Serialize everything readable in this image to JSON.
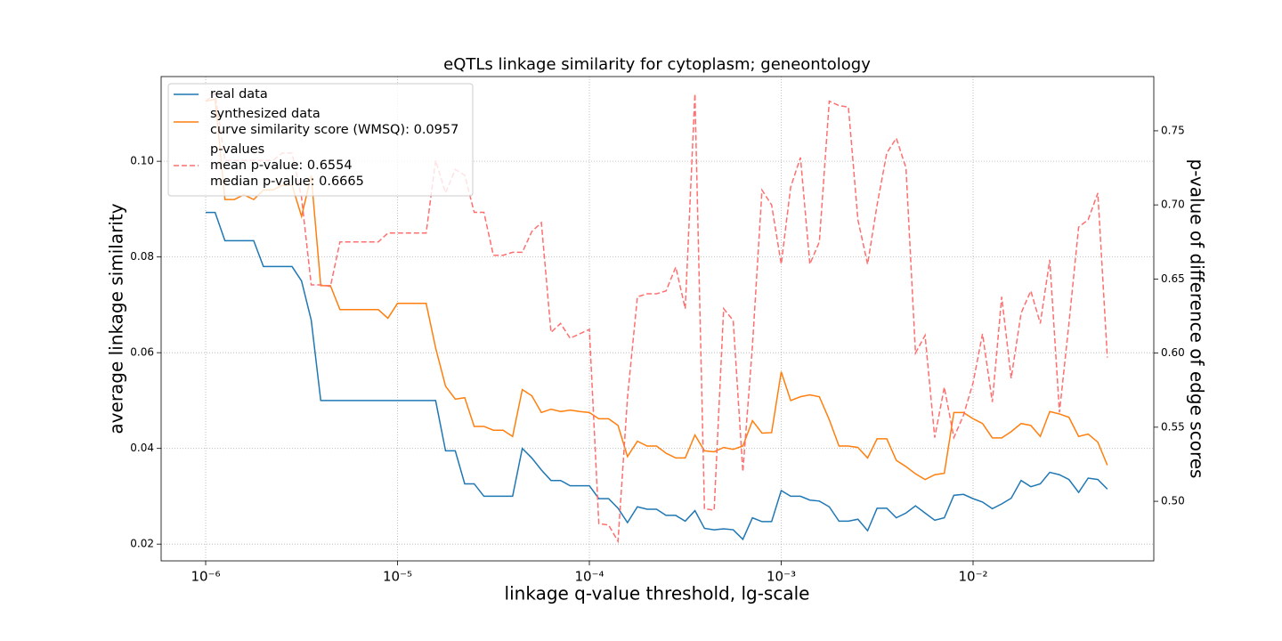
{
  "chart_data": {
    "type": "line",
    "title": "eQTLs linkage similarity for cytoplasm; geneontology",
    "x_label": "linkage q-value threshold, lg-scale",
    "y_label": "average linkage similarity",
    "y2_label": "p-value of difference of edge scores",
    "x_scale": "log",
    "grid": true,
    "legend": "upper left",
    "x": [
      1e-06,
      1.12e-06,
      1.26e-06,
      1.41e-06,
      1.58e-06,
      1.78e-06,
      2e-06,
      2.24e-06,
      2.51e-06,
      2.82e-06,
      3.16e-06,
      3.55e-06,
      3.98e-06,
      4.47e-06,
      5.01e-06,
      5.62e-06,
      6.31e-06,
      7.08e-06,
      7.94e-06,
      8.91e-06,
      1e-05,
      1.12e-05,
      1.26e-05,
      1.41e-05,
      1.58e-05,
      1.78e-05,
      2e-05,
      2.24e-05,
      2.51e-05,
      2.82e-05,
      3.16e-05,
      3.55e-05,
      3.98e-05,
      4.47e-05,
      5.01e-05,
      5.62e-05,
      6.31e-05,
      7.08e-05,
      7.94e-05,
      8.91e-05,
      0.0001,
      0.000112,
      0.000126,
      0.000141,
      0.000158,
      0.000178,
      0.0002,
      0.000224,
      0.000251,
      0.000282,
      0.000316,
      0.000355,
      0.000398,
      0.000447,
      0.000501,
      0.000562,
      0.000631,
      0.000708,
      0.000794,
      0.000891,
      0.001,
      0.00112,
      0.00126,
      0.00141,
      0.00158,
      0.00178,
      0.002,
      0.00224,
      0.00251,
      0.00282,
      0.00316,
      0.00355,
      0.00398,
      0.00447,
      0.00501,
      0.00562,
      0.00631,
      0.00708,
      0.00794,
      0.00891,
      0.01,
      0.0112,
      0.0126,
      0.0141,
      0.0158,
      0.0178,
      0.02,
      0.0224,
      0.0251,
      0.0282,
      0.0316,
      0.0355,
      0.0398,
      0.0447,
      0.0501
    ],
    "series": [
      {
        "name": "real data",
        "color": "#1f77b4",
        "linestyle": "solid",
        "axis": "y",
        "values": [
          0.0893,
          0.0893,
          0.0834,
          0.0834,
          0.0834,
          0.0834,
          0.078,
          0.078,
          0.078,
          0.078,
          0.075,
          0.0668,
          0.05,
          0.05,
          0.05,
          0.05,
          0.05,
          0.05,
          0.05,
          0.05,
          0.05,
          0.05,
          0.05,
          0.05,
          0.05,
          0.0395,
          0.0395,
          0.0326,
          0.0326,
          0.03,
          0.03,
          0.03,
          0.03,
          0.04,
          0.038,
          0.0355,
          0.0333,
          0.0333,
          0.0322,
          0.0322,
          0.0322,
          0.0295,
          0.0295,
          0.0275,
          0.0245,
          0.0278,
          0.0273,
          0.0273,
          0.026,
          0.026,
          0.0248,
          0.027,
          0.0233,
          0.023,
          0.0232,
          0.023,
          0.021,
          0.0255,
          0.0247,
          0.0247,
          0.0312,
          0.03,
          0.03,
          0.0292,
          0.029,
          0.0278,
          0.0248,
          0.0248,
          0.0252,
          0.0228,
          0.0275,
          0.0275,
          0.0255,
          0.0265,
          0.028,
          0.0265,
          0.025,
          0.0255,
          0.0302,
          0.0304,
          0.0295,
          0.0288,
          0.0274,
          0.0284,
          0.0296,
          0.0333,
          0.032,
          0.0326,
          0.035,
          0.0345,
          0.0335,
          0.0308,
          0.0338,
          0.0335,
          0.0315
        ]
      },
      {
        "name": "synthesized data",
        "legend_lines": [
          "curve similarity score (WMSQ): 0.0957"
        ],
        "color": "#ff7f0e",
        "linestyle": "solid",
        "axis": "y",
        "values": [
          0.1125,
          0.113,
          0.092,
          0.092,
          0.093,
          0.092,
          0.094,
          0.094,
          0.095,
          0.095,
          0.0885,
          0.097,
          0.074,
          0.074,
          0.069,
          0.069,
          0.069,
          0.069,
          0.069,
          0.0672,
          0.0703,
          0.0703,
          0.0703,
          0.0703,
          0.061,
          0.053,
          0.0503,
          0.0506,
          0.0446,
          0.0446,
          0.0438,
          0.0438,
          0.0425,
          0.0523,
          0.051,
          0.0475,
          0.0482,
          0.0477,
          0.048,
          0.0477,
          0.0475,
          0.0462,
          0.0462,
          0.0448,
          0.0383,
          0.0415,
          0.0405,
          0.0405,
          0.039,
          0.038,
          0.038,
          0.0428,
          0.0395,
          0.0393,
          0.0402,
          0.0398,
          0.0405,
          0.0458,
          0.0432,
          0.0433,
          0.056,
          0.05,
          0.0508,
          0.0512,
          0.0508,
          0.046,
          0.0405,
          0.0405,
          0.0402,
          0.038,
          0.042,
          0.042,
          0.0375,
          0.0362,
          0.0347,
          0.0335,
          0.0345,
          0.0348,
          0.0475,
          0.0475,
          0.0462,
          0.0452,
          0.0422,
          0.0422,
          0.0435,
          0.0452,
          0.0448,
          0.0425,
          0.0477,
          0.0472,
          0.0465,
          0.0425,
          0.043,
          0.0413,
          0.0365
        ]
      },
      {
        "name": "p-values",
        "legend_lines": [
          "mean p-value: 0.6554",
          "median p-value: 0.6665"
        ],
        "color": "#ff6f6f",
        "linestyle": "dashed",
        "axis": "y2",
        "values": [
          0.77,
          0.775,
          0.73,
          0.73,
          0.73,
          0.73,
          0.73,
          0.73,
          0.735,
          0.735,
          0.705,
          0.646,
          0.646,
          0.645,
          0.675,
          0.675,
          0.675,
          0.675,
          0.675,
          0.681,
          0.681,
          0.681,
          0.681,
          0.681,
          0.73,
          0.708,
          0.724,
          0.72,
          0.695,
          0.695,
          0.666,
          0.666,
          0.668,
          0.668,
          0.682,
          0.688,
          0.614,
          0.62,
          0.61,
          0.613,
          0.616,
          0.485,
          0.484,
          0.473,
          0.57,
          0.638,
          0.64,
          0.64,
          0.642,
          0.658,
          0.63,
          0.775,
          0.495,
          0.494,
          0.63,
          0.622,
          0.52,
          0.605,
          0.71,
          0.7,
          0.66,
          0.712,
          0.732,
          0.66,
          0.675,
          0.77,
          0.767,
          0.766,
          0.69,
          0.66,
          0.7,
          0.735,
          0.745,
          0.725,
          0.6,
          0.612,
          0.543,
          0.577,
          0.543,
          0.558,
          0.58,
          0.613,
          0.567,
          0.638,
          0.583,
          0.627,
          0.642,
          0.62,
          0.663,
          0.56,
          0.62,
          0.685,
          0.69,
          0.708,
          0.597
        ]
      }
    ],
    "xlim": [
      5.86e-07,
      0.0875
    ],
    "xticks": [
      {
        "value": 1e-06,
        "label": "10⁻⁶"
      },
      {
        "value": 1e-05,
        "label": "10⁻⁵"
      },
      {
        "value": 0.0001,
        "label": "10⁻⁴"
      },
      {
        "value": 0.001,
        "label": "10⁻³"
      },
      {
        "value": 0.01,
        "label": "10⁻²"
      }
    ],
    "ylim": [
      0.0165,
      0.1177
    ],
    "yticks": [
      0.02,
      0.04,
      0.06,
      0.08,
      {
        "value": 0.1,
        "label": "0.10"
      }
    ],
    "y2lim": [
      0.4598,
      0.7866
    ],
    "y2ticks": [
      {
        "value": 0.5,
        "label": "0.50"
      },
      0.55,
      {
        "value": 0.6,
        "label": "0.60"
      },
      0.65,
      {
        "value": 0.7,
        "label": "0.70"
      },
      0.75
    ]
  }
}
